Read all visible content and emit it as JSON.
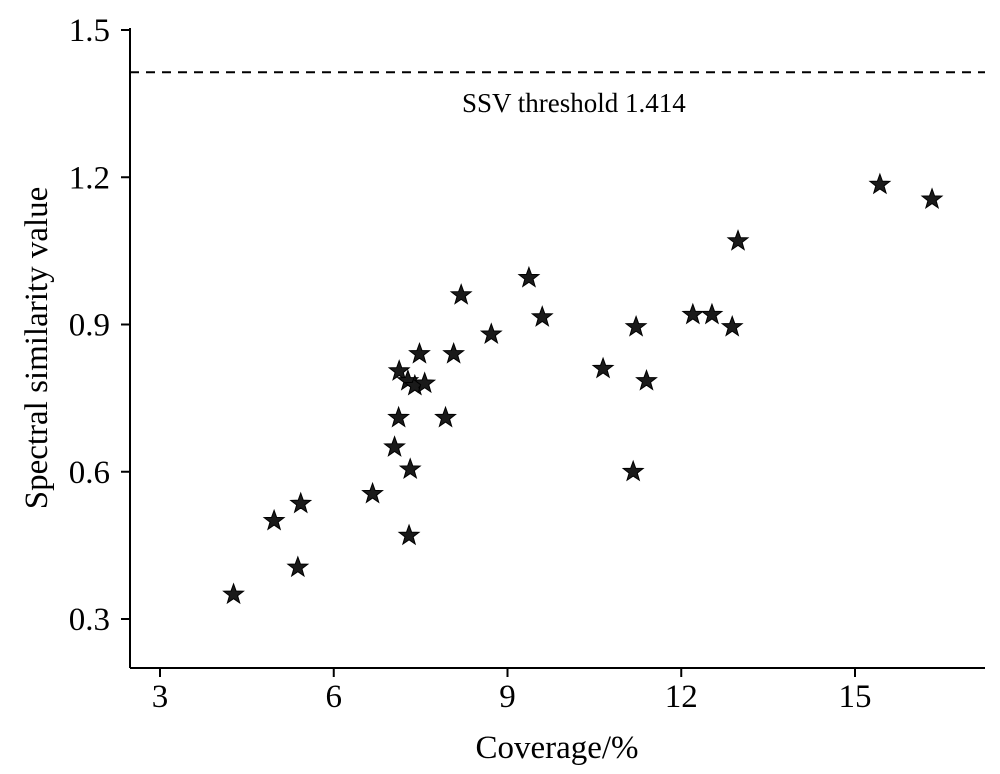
{
  "chart_data": {
    "type": "scatter",
    "title": "",
    "xlabel": "Coverage/%",
    "ylabel": "Spectral similarity value",
    "xlim": [
      2.5,
      17.5
    ],
    "ylim": [
      0.2,
      1.5
    ],
    "xticks": [
      3,
      6,
      9,
      12,
      15
    ],
    "yticks": [
      0.3,
      0.6,
      0.9,
      1.2,
      1.5
    ],
    "x_tick_labels": [
      "3",
      "6",
      "9",
      "12",
      "15"
    ],
    "y_tick_labels": [
      "0.3",
      "0.6",
      "0.9",
      "1.2",
      "1.5"
    ],
    "marker": "star",
    "color": "#1a1a1a",
    "grid": false,
    "reference_line": {
      "y": 1.414,
      "style": "dashed",
      "label": "SSV threshold 1.414"
    },
    "points": [
      {
        "x": 4.27,
        "y": 0.35
      },
      {
        "x": 4.97,
        "y": 0.5
      },
      {
        "x": 5.38,
        "y": 0.405
      },
      {
        "x": 5.43,
        "y": 0.535
      },
      {
        "x": 6.67,
        "y": 0.555
      },
      {
        "x": 7.05,
        "y": 0.65
      },
      {
        "x": 7.12,
        "y": 0.71
      },
      {
        "x": 7.13,
        "y": 0.805
      },
      {
        "x": 7.28,
        "y": 0.785
      },
      {
        "x": 7.32,
        "y": 0.605
      },
      {
        "x": 7.3,
        "y": 0.47
      },
      {
        "x": 7.4,
        "y": 0.775
      },
      {
        "x": 7.48,
        "y": 0.84
      },
      {
        "x": 7.57,
        "y": 0.78
      },
      {
        "x": 7.93,
        "y": 0.71
      },
      {
        "x": 8.07,
        "y": 0.84
      },
      {
        "x": 8.2,
        "y": 0.96
      },
      {
        "x": 8.72,
        "y": 0.88
      },
      {
        "x": 9.37,
        "y": 0.995
      },
      {
        "x": 9.6,
        "y": 0.915
      },
      {
        "x": 10.65,
        "y": 0.81
      },
      {
        "x": 11.17,
        "y": 0.6
      },
      {
        "x": 11.22,
        "y": 0.895
      },
      {
        "x": 11.4,
        "y": 0.785
      },
      {
        "x": 12.2,
        "y": 0.92
      },
      {
        "x": 12.53,
        "y": 0.92
      },
      {
        "x": 12.88,
        "y": 0.895
      },
      {
        "x": 12.98,
        "y": 1.07
      },
      {
        "x": 15.43,
        "y": 1.185
      },
      {
        "x": 16.33,
        "y": 1.155
      }
    ]
  }
}
